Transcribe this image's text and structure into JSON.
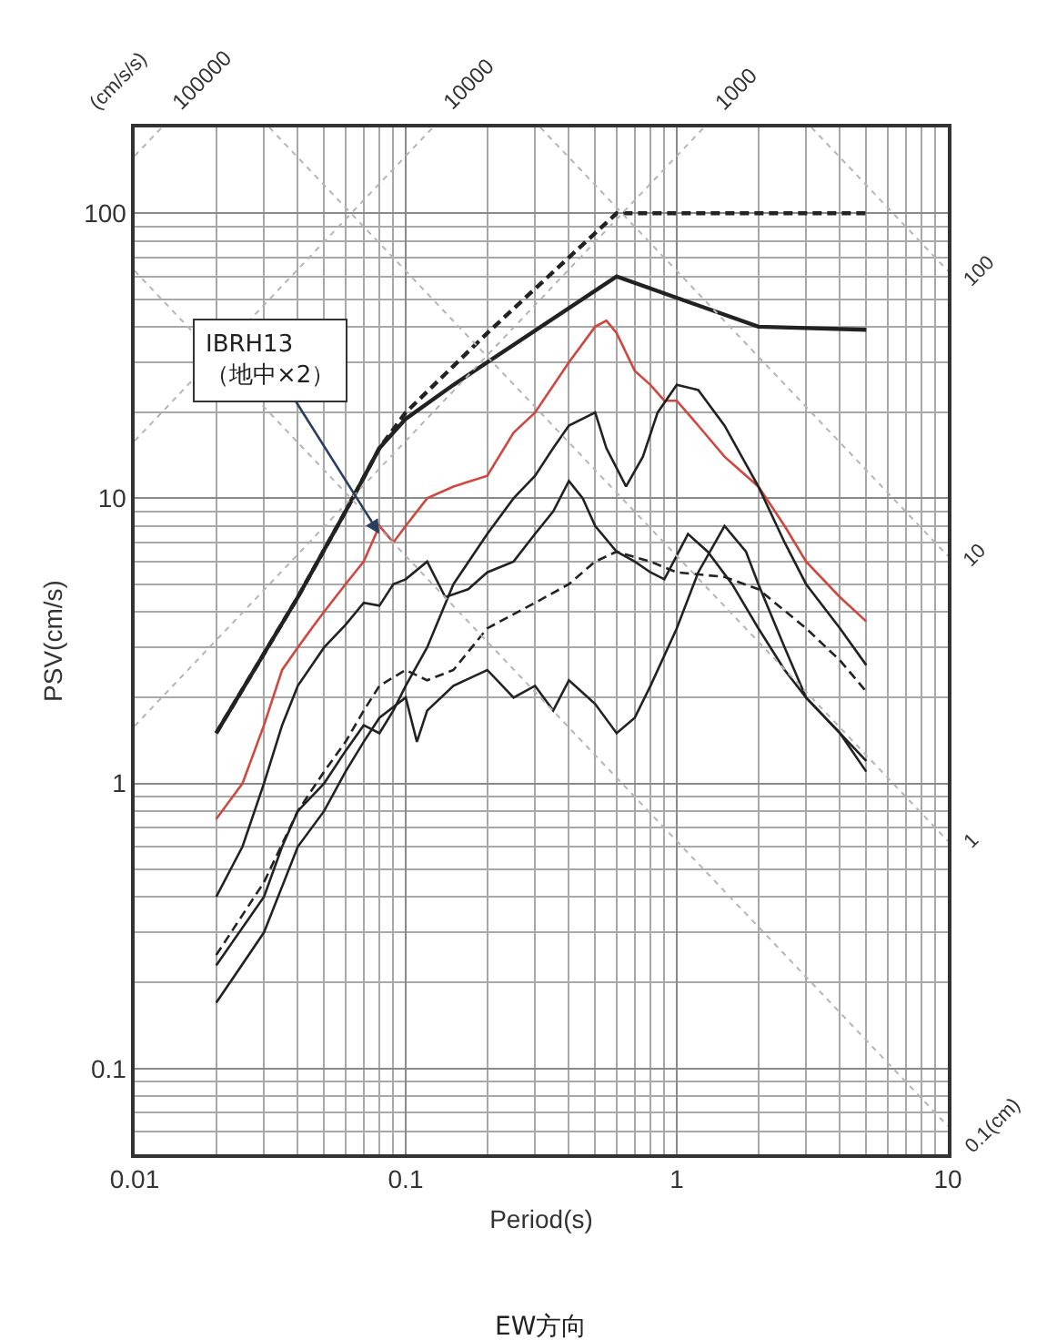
{
  "chart_data": {
    "type": "line",
    "title": "EW方向",
    "xlabel": "Period(s)",
    "ylabel": "PSV(cm/s)",
    "log": "xy",
    "grid": true,
    "marker": "none",
    "xlim": [
      0.01,
      10
    ],
    "ylim": [
      0.05,
      200
    ],
    "xticks": [
      0.01,
      0.1,
      1,
      10
    ],
    "yticks": [
      0.1,
      1,
      10,
      100
    ],
    "series": [
      {
        "color": "#222222",
        "line_style": "dashed",
        "x": [
          0.02,
          0.04,
          0.06,
          0.08,
          0.1,
          0.2,
          0.4,
          0.6,
          5
        ],
        "values": [
          1.5,
          4.5,
          9,
          15,
          20,
          38,
          70,
          100,
          100
        ]
      },
      {
        "color": "#222222",
        "line_style": "solid",
        "x": [
          0.02,
          0.04,
          0.06,
          0.08,
          0.1,
          0.15,
          0.6,
          2,
          5
        ],
        "values": [
          1.5,
          4.5,
          9,
          15,
          19,
          25,
          60,
          40,
          39
        ]
      },
      {
        "color": "#d0473f",
        "line_style": "solid",
        "x": [
          0.02,
          0.025,
          0.03,
          0.035,
          0.04,
          0.045,
          0.05,
          0.06,
          0.07,
          0.08,
          0.09,
          0.1,
          0.12,
          0.15,
          0.2,
          0.25,
          0.3,
          0.4,
          0.5,
          0.55,
          0.6,
          0.7,
          0.8,
          0.9,
          1,
          1.2,
          1.5,
          2,
          2.5,
          3,
          4,
          5
        ],
        "values": [
          0.75,
          1.0,
          1.6,
          2.5,
          3,
          3.5,
          4,
          5,
          6,
          8,
          7,
          8,
          10,
          11,
          12,
          17,
          20,
          30,
          40,
          42,
          38,
          28,
          25,
          22,
          22,
          18,
          14,
          11,
          8,
          6,
          4.5,
          3.7
        ]
      },
      {
        "color": "#222222",
        "line_style": "solid",
        "x": [
          0.02,
          0.025,
          0.03,
          0.035,
          0.04,
          0.05,
          0.06,
          0.07,
          0.08,
          0.09,
          0.1,
          0.12,
          0.14,
          0.17,
          0.2,
          0.25,
          0.3,
          0.35,
          0.4,
          0.45,
          0.5,
          0.6,
          0.7,
          0.8,
          0.9,
          1.1,
          1.3,
          1.6,
          2,
          2.5,
          3,
          4,
          5
        ],
        "values": [
          0.4,
          0.6,
          1.0,
          1.6,
          2.2,
          3,
          3.6,
          4.3,
          4.2,
          5,
          5.2,
          6,
          4.5,
          4.8,
          5.5,
          6,
          7.5,
          9,
          11.5,
          10,
          8,
          6.5,
          6,
          5.5,
          5.2,
          7.5,
          6.5,
          5,
          3.5,
          2.5,
          2,
          1.5,
          1.2
        ]
      },
      {
        "color": "#222222",
        "line_style": "solid",
        "x": [
          0.02,
          0.03,
          0.035,
          0.04,
          0.05,
          0.06,
          0.07,
          0.08,
          0.09,
          0.1,
          0.12,
          0.15,
          0.2,
          0.25,
          0.3,
          0.35,
          0.4,
          0.5,
          0.55,
          0.65,
          0.75,
          0.85,
          1,
          1.2,
          1.5,
          2,
          2.5,
          3,
          4,
          5
        ],
        "values": [
          0.23,
          0.4,
          0.6,
          0.8,
          1.0,
          1.3,
          1.6,
          1.5,
          1.8,
          2.2,
          3,
          5,
          7.5,
          10,
          12,
          15,
          18,
          20,
          15,
          11,
          14,
          20,
          25,
          24,
          18,
          11,
          7,
          5,
          3.5,
          2.6
        ]
      },
      {
        "color": "#222222",
        "line_style": "dashed",
        "x": [
          0.02,
          0.03,
          0.04,
          0.05,
          0.06,
          0.07,
          0.08,
          0.1,
          0.12,
          0.15,
          0.2,
          0.3,
          0.4,
          0.5,
          0.6,
          0.8,
          1,
          1.5,
          2,
          3,
          4,
          5
        ],
        "values": [
          0.25,
          0.45,
          0.8,
          1.1,
          1.4,
          1.8,
          2.2,
          2.5,
          2.3,
          2.5,
          3.5,
          4.3,
          5,
          6,
          6.5,
          6,
          5.5,
          5.3,
          4.8,
          3.5,
          2.7,
          2.1
        ]
      },
      {
        "color": "#222222",
        "line_style": "solid",
        "x": [
          0.02,
          0.03,
          0.04,
          0.05,
          0.06,
          0.07,
          0.08,
          0.1,
          0.11,
          0.12,
          0.15,
          0.2,
          0.25,
          0.3,
          0.35,
          0.4,
          0.5,
          0.6,
          0.7,
          0.8,
          1,
          1.2,
          1.5,
          1.8,
          2,
          2.5,
          3,
          4,
          5
        ],
        "values": [
          0.17,
          0.3,
          0.6,
          0.8,
          1.1,
          1.4,
          1.7,
          2.0,
          1.4,
          1.8,
          2.2,
          2.5,
          2,
          2.2,
          1.8,
          2.3,
          1.9,
          1.5,
          1.7,
          2.2,
          3.5,
          5.5,
          8,
          6.5,
          5,
          3,
          2,
          1.5,
          1.1
        ]
      },
      {
        "color": "#b5b5b5",
        "line_style": "dotted",
        "x": [
          0.01,
          0.0126
        ],
        "values": [
          159,
          200
        ]
      },
      {
        "color": "#b5b5b5",
        "line_style": "dotted",
        "x": [
          0.01,
          0.126
        ],
        "values": [
          15.9,
          200
        ]
      },
      {
        "color": "#b5b5b5",
        "line_style": "dotted",
        "x": [
          0.01,
          1.26
        ],
        "values": [
          1.59,
          200
        ]
      },
      {
        "color": "#b5b5b5",
        "line_style": "dotted",
        "x": [
          3.14,
          10
        ],
        "values": [
          200,
          62.8
        ]
      },
      {
        "color": "#b5b5b5",
        "line_style": "dotted",
        "x": [
          0.314,
          10
        ],
        "values": [
          200,
          6.28
        ]
      },
      {
        "color": "#b5b5b5",
        "line_style": "dotted",
        "x": [
          0.0314,
          10
        ],
        "values": [
          200,
          0.628
        ]
      },
      {
        "color": "#b5b5b5",
        "line_style": "dotted",
        "x": [
          0.01,
          10
        ],
        "values": [
          62.8,
          0.0628
        ]
      }
    ],
    "annotations": [
      {
        "text": "IBRH13\n（地中×2）",
        "x": 0.08,
        "y": 7.5
      },
      "(cm/s/s)",
      {
        "text": "100000",
        "x": 0.0126,
        "y": 200
      },
      {
        "text": "10000",
        "x": 0.126,
        "y": 200
      },
      {
        "text": "1000",
        "x": 1.26,
        "y": 200
      },
      {
        "text": "100",
        "x": 10,
        "y": 62.8
      },
      {
        "text": "10",
        "x": 10,
        "y": 6.28
      },
      {
        "text": "1",
        "x": 10,
        "y": 0.628
      },
      {
        "text": "0.1(cm)",
        "x": 10,
        "y": 0.0628
      }
    ]
  }
}
